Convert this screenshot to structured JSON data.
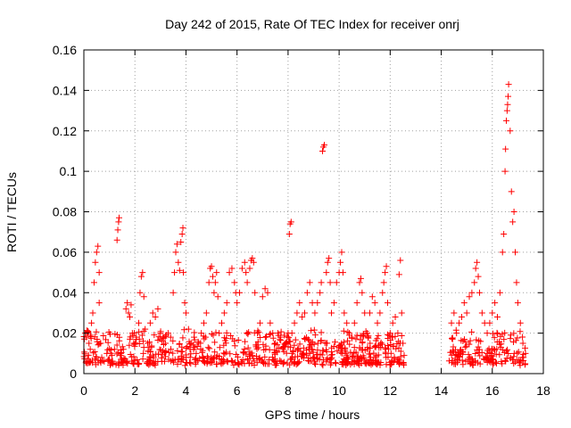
{
  "chart_data": {
    "type": "scatter",
    "title": "Day 242 of 2015, Rate Of TEC Index for receiver onrj",
    "xlabel": "GPS time / hours",
    "ylabel": "ROTI / TECUs",
    "xlim": [
      0,
      18
    ],
    "ylim": [
      0,
      0.16
    ],
    "xticks": [
      0,
      2,
      4,
      6,
      8,
      10,
      12,
      14,
      16,
      18
    ],
    "yticks": [
      0,
      0.02,
      0.04,
      0.06,
      0.08,
      0.1,
      0.12,
      0.14,
      0.16
    ],
    "xtick_labels": [
      "0",
      "2",
      "4",
      "6",
      "8",
      "10",
      "12",
      "14",
      "16",
      "18"
    ],
    "ytick_labels": [
      "0",
      "0.02",
      "0.04",
      "0.06",
      "0.08",
      "0.1",
      "0.12",
      "0.14",
      "0.16"
    ],
    "grid": true,
    "marker": "plus",
    "color": "#ff0000",
    "series": [
      {
        "name": "ROTI",
        "points": [
          [
            0.05,
            0.02
          ],
          [
            0.1,
            0.018
          ],
          [
            0.15,
            0.021
          ],
          [
            0.2,
            0.015
          ],
          [
            0.25,
            0.012
          ],
          [
            0.3,
            0.025
          ],
          [
            0.35,
            0.03
          ],
          [
            0.4,
            0.045
          ],
          [
            0.45,
            0.055
          ],
          [
            0.5,
            0.06
          ],
          [
            0.55,
            0.063
          ],
          [
            0.6,
            0.05
          ],
          [
            0.6,
            0.035
          ],
          [
            0.65,
            0.015
          ],
          [
            0.7,
            0.008
          ],
          [
            0.8,
            0.006
          ],
          [
            0.9,
            0.01
          ],
          [
            1.0,
            0.007
          ],
          [
            1.1,
            0.009
          ],
          [
            1.2,
            0.012
          ],
          [
            1.3,
            0.066
          ],
          [
            1.33,
            0.071
          ],
          [
            1.36,
            0.075
          ],
          [
            1.38,
            0.077
          ],
          [
            1.45,
            0.01
          ],
          [
            1.55,
            0.012
          ],
          [
            1.65,
            0.032
          ],
          [
            1.7,
            0.035
          ],
          [
            1.75,
            0.03
          ],
          [
            1.8,
            0.028
          ],
          [
            1.85,
            0.034
          ],
          [
            1.9,
            0.02
          ],
          [
            1.95,
            0.015
          ],
          [
            2.05,
            0.018
          ],
          [
            2.15,
            0.025
          ],
          [
            2.2,
            0.04
          ],
          [
            2.25,
            0.048
          ],
          [
            2.3,
            0.05
          ],
          [
            2.35,
            0.038
          ],
          [
            2.4,
            0.022
          ],
          [
            2.5,
            0.015
          ],
          [
            2.6,
            0.025
          ],
          [
            2.7,
            0.03
          ],
          [
            2.8,
            0.028
          ],
          [
            2.9,
            0.032
          ],
          [
            3.0,
            0.02
          ],
          [
            3.1,
            0.018
          ],
          [
            3.2,
            0.015
          ],
          [
            3.3,
            0.02
          ],
          [
            3.4,
            0.018
          ],
          [
            3.5,
            0.04
          ],
          [
            3.55,
            0.05
          ],
          [
            3.6,
            0.06
          ],
          [
            3.65,
            0.064
          ],
          [
            3.7,
            0.055
          ],
          [
            3.75,
            0.051
          ],
          [
            3.8,
            0.065
          ],
          [
            3.85,
            0.069
          ],
          [
            3.88,
            0.072
          ],
          [
            3.9,
            0.05
          ],
          [
            3.95,
            0.035
          ],
          [
            4.0,
            0.03
          ],
          [
            4.1,
            0.022
          ],
          [
            4.2,
            0.015
          ],
          [
            4.3,
            0.012
          ],
          [
            4.4,
            0.01
          ],
          [
            4.5,
            0.015
          ],
          [
            4.6,
            0.02
          ],
          [
            4.7,
            0.025
          ],
          [
            4.8,
            0.03
          ],
          [
            4.9,
            0.045
          ],
          [
            4.95,
            0.052
          ],
          [
            5.0,
            0.053
          ],
          [
            5.05,
            0.048
          ],
          [
            5.1,
            0.04
          ],
          [
            5.15,
            0.045
          ],
          [
            5.2,
            0.05
          ],
          [
            5.25,
            0.038
          ],
          [
            5.3,
            0.02
          ],
          [
            5.4,
            0.025
          ],
          [
            5.5,
            0.03
          ],
          [
            5.6,
            0.035
          ],
          [
            5.7,
            0.05
          ],
          [
            5.8,
            0.052
          ],
          [
            5.9,
            0.045
          ],
          [
            5.95,
            0.04
          ],
          [
            6.0,
            0.035
          ],
          [
            6.1,
            0.04
          ],
          [
            6.2,
            0.052
          ],
          [
            6.3,
            0.055
          ],
          [
            6.35,
            0.05
          ],
          [
            6.4,
            0.045
          ],
          [
            6.5,
            0.052
          ],
          [
            6.55,
            0.056
          ],
          [
            6.6,
            0.057
          ],
          [
            6.65,
            0.055
          ],
          [
            6.7,
            0.04
          ],
          [
            6.8,
            0.02
          ],
          [
            6.9,
            0.025
          ],
          [
            7.0,
            0.038
          ],
          [
            7.1,
            0.042
          ],
          [
            7.2,
            0.04
          ],
          [
            7.3,
            0.025
          ],
          [
            7.4,
            0.02
          ],
          [
            7.5,
            0.015
          ],
          [
            7.6,
            0.02
          ],
          [
            7.7,
            0.018
          ],
          [
            7.8,
            0.012
          ],
          [
            7.9,
            0.015
          ],
          [
            8.0,
            0.02
          ],
          [
            8.05,
            0.069
          ],
          [
            8.08,
            0.074
          ],
          [
            8.12,
            0.075
          ],
          [
            8.15,
            0.02
          ],
          [
            8.25,
            0.025
          ],
          [
            8.35,
            0.03
          ],
          [
            8.45,
            0.035
          ],
          [
            8.55,
            0.028
          ],
          [
            8.65,
            0.03
          ],
          [
            8.75,
            0.04
          ],
          [
            8.85,
            0.045
          ],
          [
            8.95,
            0.035
          ],
          [
            9.05,
            0.03
          ],
          [
            9.15,
            0.035
          ],
          [
            9.25,
            0.04
          ],
          [
            9.3,
            0.045
          ],
          [
            9.35,
            0.11
          ],
          [
            9.38,
            0.112
          ],
          [
            9.42,
            0.113
          ],
          [
            9.5,
            0.05
          ],
          [
            9.55,
            0.055
          ],
          [
            9.6,
            0.057
          ],
          [
            9.65,
            0.045
          ],
          [
            9.7,
            0.03
          ],
          [
            9.8,
            0.035
          ],
          [
            9.9,
            0.045
          ],
          [
            10.0,
            0.05
          ],
          [
            10.05,
            0.055
          ],
          [
            10.1,
            0.06
          ],
          [
            10.15,
            0.05
          ],
          [
            10.2,
            0.03
          ],
          [
            10.3,
            0.025
          ],
          [
            10.4,
            0.02
          ],
          [
            10.5,
            0.018
          ],
          [
            10.6,
            0.025
          ],
          [
            10.7,
            0.035
          ],
          [
            10.8,
            0.045
          ],
          [
            10.85,
            0.047
          ],
          [
            10.9,
            0.04
          ],
          [
            11.0,
            0.03
          ],
          [
            11.1,
            0.02
          ],
          [
            11.2,
            0.03
          ],
          [
            11.3,
            0.038
          ],
          [
            11.4,
            0.035
          ],
          [
            11.5,
            0.025
          ],
          [
            11.6,
            0.03
          ],
          [
            11.7,
            0.04
          ],
          [
            11.75,
            0.045
          ],
          [
            11.8,
            0.05
          ],
          [
            11.85,
            0.053
          ],
          [
            11.9,
            0.035
          ],
          [
            12.0,
            0.02
          ],
          [
            12.1,
            0.025
          ],
          [
            12.2,
            0.028
          ],
          [
            12.3,
            0.02
          ],
          [
            12.35,
            0.049
          ],
          [
            12.4,
            0.056
          ],
          [
            12.45,
            0.03
          ],
          [
            12.5,
            0.015
          ],
          [
            14.4,
            0.025
          ],
          [
            14.5,
            0.03
          ],
          [
            14.6,
            0.02
          ],
          [
            14.7,
            0.025
          ],
          [
            14.8,
            0.028
          ],
          [
            14.9,
            0.035
          ],
          [
            15.0,
            0.03
          ],
          [
            15.1,
            0.038
          ],
          [
            15.2,
            0.04
          ],
          [
            15.3,
            0.045
          ],
          [
            15.35,
            0.052
          ],
          [
            15.4,
            0.055
          ],
          [
            15.45,
            0.048
          ],
          [
            15.5,
            0.04
          ],
          [
            15.6,
            0.03
          ],
          [
            15.7,
            0.025
          ],
          [
            15.8,
            0.02
          ],
          [
            15.9,
            0.025
          ],
          [
            16.0,
            0.03
          ],
          [
            16.1,
            0.035
          ],
          [
            16.2,
            0.028
          ],
          [
            16.3,
            0.04
          ],
          [
            16.4,
            0.06
          ],
          [
            16.45,
            0.069
          ],
          [
            16.5,
            0.1
          ],
          [
            16.52,
            0.111
          ],
          [
            16.55,
            0.125
          ],
          [
            16.58,
            0.13
          ],
          [
            16.6,
            0.133
          ],
          [
            16.62,
            0.137
          ],
          [
            16.64,
            0.143
          ],
          [
            16.7,
            0.12
          ],
          [
            16.75,
            0.09
          ],
          [
            16.8,
            0.075
          ],
          [
            16.85,
            0.08
          ],
          [
            16.9,
            0.06
          ],
          [
            16.95,
            0.045
          ],
          [
            17.0,
            0.035
          ],
          [
            17.1,
            0.025
          ],
          [
            17.2,
            0.015
          ],
          [
            17.3,
            0.01
          ]
        ],
        "dense_bands": [
          {
            "x_from": 0.0,
            "x_to": 12.6,
            "y_from": 0.004,
            "y_to": 0.022
          },
          {
            "x_from": 14.3,
            "x_to": 17.3,
            "y_from": 0.004,
            "y_to": 0.022
          }
        ]
      }
    ]
  }
}
